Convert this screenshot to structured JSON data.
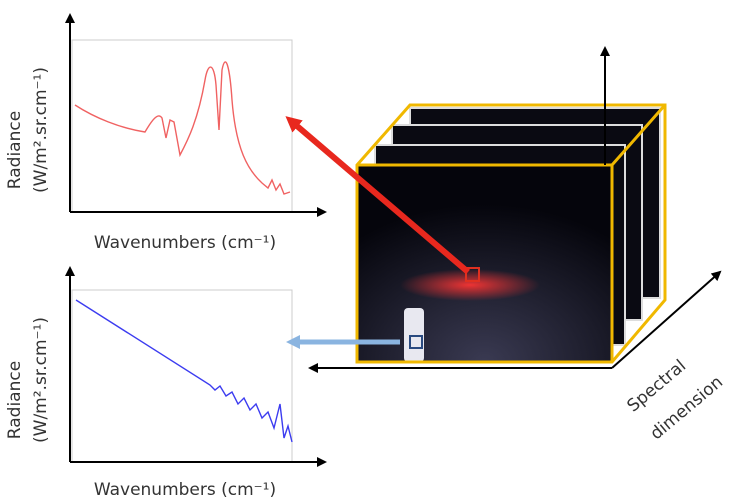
{
  "plots": [
    {
      "y_label": "Radiance",
      "y_unit": "(W/m².sr.cm⁻¹)",
      "x_label": "Wavenumbers (cm⁻¹)"
    },
    {
      "y_label": "Radiance",
      "y_unit": "(W/m².sr.cm⁻¹)",
      "x_label": "Wavenumbers (cm⁻¹)"
    }
  ],
  "cube": {
    "axis_label": [
      "Spectral",
      "dimension"
    ]
  }
}
